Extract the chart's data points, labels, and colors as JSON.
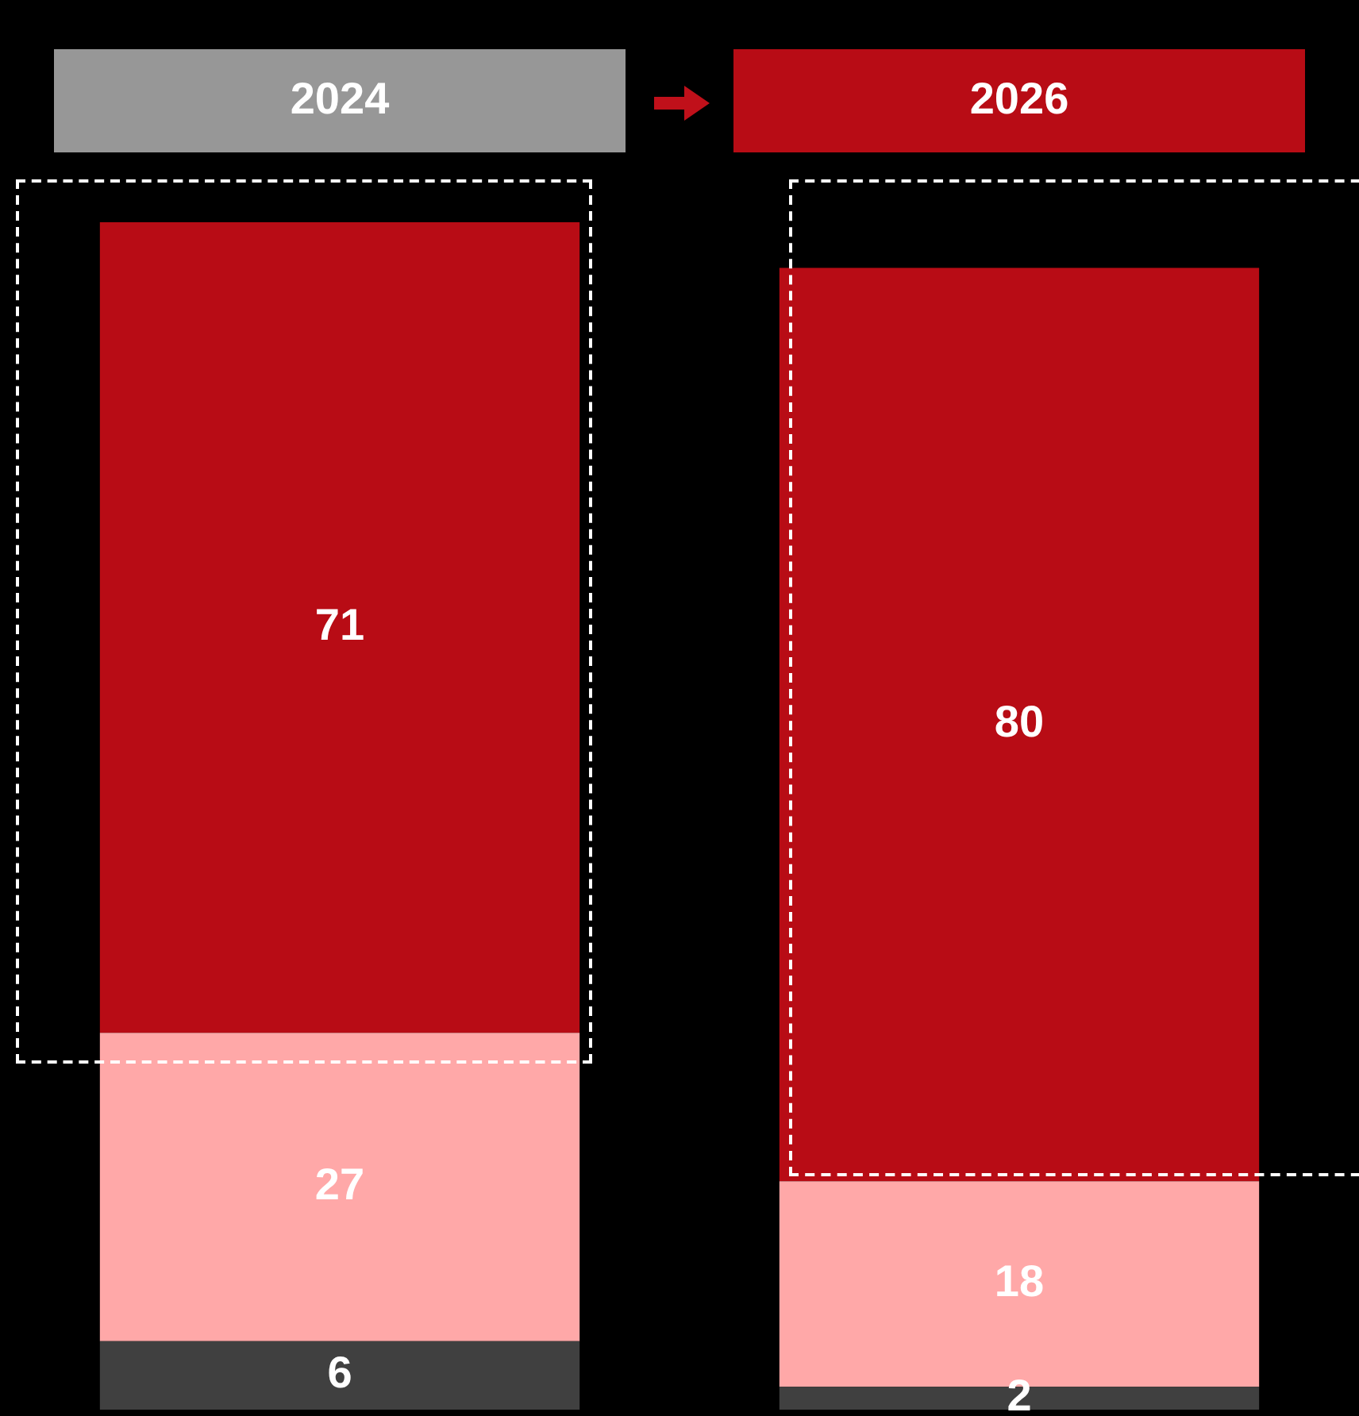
{
  "chart_data": {
    "type": "bar",
    "stacked": true,
    "categories": [
      "2024",
      "2026"
    ],
    "series": [
      {
        "color": "#404040",
        "values": [
          6,
          2
        ]
      },
      {
        "color": "#ffa8a8",
        "values": [
          27,
          18
        ]
      },
      {
        "color": "#b80c15",
        "values": [
          71,
          80
        ]
      }
    ],
    "ylim": [
      0,
      104
    ],
    "tick_labels": false,
    "legend": false,
    "data_labels": true
  }
}
